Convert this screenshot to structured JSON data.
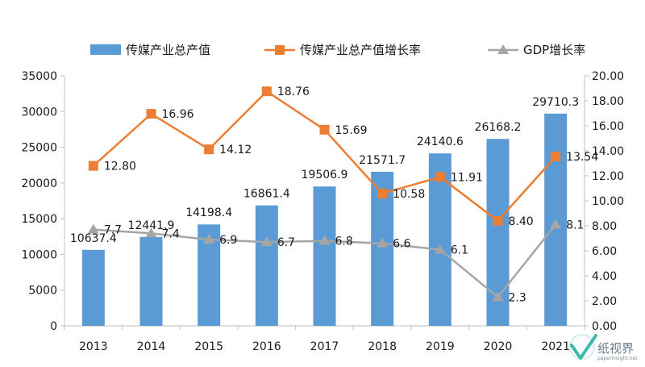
{
  "chart_data": {
    "type": "bar+line",
    "categories": [
      "2013",
      "2014",
      "2015",
      "2016",
      "2017",
      "2018",
      "2019",
      "2020",
      "2021"
    ],
    "series": [
      {
        "name": "传媒产业总产值",
        "type": "bar",
        "axis": "left",
        "color": "#5b9bd5",
        "values": [
          10637.4,
          12441.9,
          14198.4,
          16861.4,
          19506.9,
          21571.7,
          24140.6,
          26168.2,
          29710.3
        ],
        "labels": [
          "10637.4",
          "12441.9",
          "14198.4",
          "16861.4",
          "19506.9",
          "21571.7",
          "24140.6",
          "26168.2",
          "29710.3"
        ]
      },
      {
        "name": "传媒产业总产值增长率",
        "type": "line",
        "axis": "right",
        "color": "#ed7d31",
        "marker": "square",
        "values": [
          12.8,
          16.96,
          14.12,
          18.76,
          15.69,
          10.58,
          11.91,
          8.4,
          13.54
        ],
        "labels": [
          "12.80",
          "16.96",
          "14.12",
          "18.76",
          "15.69",
          "10.58",
          "11.91",
          "8.40",
          "13.54"
        ]
      },
      {
        "name": "GDP增长率",
        "type": "line",
        "axis": "right",
        "color": "#a5a5a5",
        "marker": "triangle",
        "values": [
          7.7,
          7.4,
          6.9,
          6.7,
          6.8,
          6.6,
          6.1,
          2.3,
          8.1
        ],
        "labels": [
          "7.7",
          "7.4",
          "6.9",
          "6.7",
          "6.8",
          "6.6",
          "6.1",
          "2.3",
          "8.1"
        ]
      }
    ],
    "y_left": {
      "min": 0,
      "max": 35000,
      "step": 5000,
      "ticks": [
        "0",
        "5000",
        "10000",
        "15000",
        "20000",
        "25000",
        "30000",
        "35000"
      ]
    },
    "y_right": {
      "min": 0,
      "max": 20,
      "step": 2,
      "ticks": [
        "0.00",
        "2.00",
        "4.00",
        "6.00",
        "8.00",
        "10.00",
        "12.00",
        "14.00",
        "16.00",
        "18.00",
        "20.00"
      ]
    },
    "grid": false,
    "legend": "top",
    "title": "",
    "xlabel": "",
    "ylabel": ""
  },
  "watermark": {
    "name": "纸视界",
    "url": "paperinsight.net",
    "icon": "paperinsight-logo-icon"
  }
}
